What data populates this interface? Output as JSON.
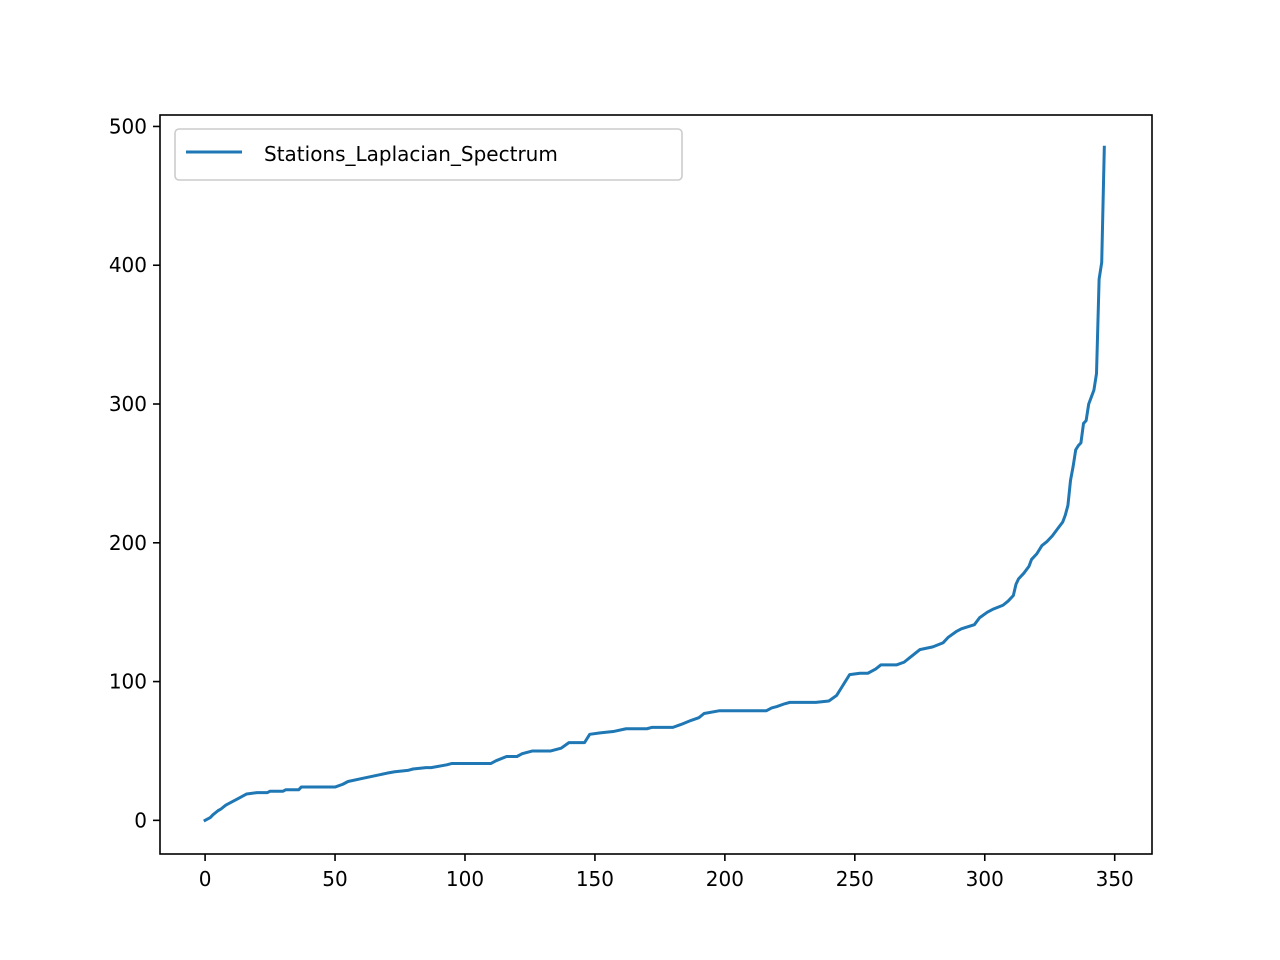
{
  "chart_data": {
    "type": "line",
    "title": "",
    "xlabel": "",
    "ylabel": "",
    "xlim": [
      -17.35,
      364.35
    ],
    "ylim": [
      -24.25,
      508.25
    ],
    "xticks": [
      0,
      50,
      100,
      150,
      200,
      250,
      300,
      350
    ],
    "yticks": [
      0,
      100,
      200,
      300,
      400,
      500
    ],
    "xtick_labels": [
      "0",
      "50",
      "100",
      "150",
      "200",
      "250",
      "300",
      "350"
    ],
    "ytick_labels": [
      "0",
      "100",
      "200",
      "300",
      "400",
      "500"
    ],
    "grid": false,
    "legend": {
      "position": "top-left",
      "entries": [
        "Stations_Laplacian_Spectrum"
      ]
    },
    "series": [
      {
        "name": "Stations_Laplacian_Spectrum",
        "color": "#1f77b4",
        "x": [
          0,
          2,
          3,
          5,
          6,
          8,
          10,
          13,
          16,
          20,
          24,
          25,
          30,
          31,
          36,
          37,
          50,
          53,
          55,
          60,
          65,
          70,
          73,
          78,
          80,
          85,
          87,
          93,
          95,
          110,
          112,
          116,
          120,
          122,
          126,
          133,
          137,
          140,
          146,
          148,
          152,
          157,
          162,
          170,
          172,
          180,
          183,
          187,
          190,
          192,
          198,
          200,
          210,
          216,
          218,
          220,
          223,
          225,
          235,
          240,
          243,
          245,
          246,
          248,
          252,
          255,
          258,
          260,
          266,
          269,
          271,
          273,
          275,
          280,
          284,
          286,
          289,
          291,
          296,
          298,
          301,
          303,
          307,
          309,
          311,
          312,
          313,
          315,
          317,
          318,
          320,
          322,
          324,
          326,
          328,
          330,
          331,
          332,
          333,
          334,
          335,
          336,
          337,
          338,
          339,
          340,
          341,
          342,
          343,
          344,
          345,
          346
        ],
        "values": [
          0,
          2,
          4,
          7,
          8,
          11,
          13,
          16,
          19,
          20,
          20,
          21,
          21,
          22,
          22,
          24,
          24,
          26,
          28,
          30,
          32,
          34,
          35,
          36,
          37,
          38,
          38,
          40,
          41,
          41,
          43,
          46,
          46,
          48,
          50,
          50,
          52,
          56,
          56,
          62,
          63,
          64,
          66,
          66,
          67,
          67,
          69,
          72,
          74,
          77,
          79,
          79,
          79,
          79,
          81,
          82,
          84,
          85,
          85,
          86,
          90,
          96,
          99,
          105,
          106,
          106,
          109,
          112,
          112,
          114,
          117,
          120,
          123,
          125,
          128,
          132,
          136,
          138,
          141,
          146,
          150,
          152,
          155,
          158,
          162,
          170,
          174,
          178,
          183,
          188,
          192,
          198,
          201,
          205,
          210,
          215,
          220,
          227,
          245,
          255,
          267,
          270,
          272,
          286,
          288,
          300,
          305,
          310,
          322,
          390,
          402,
          485
        ]
      }
    ]
  }
}
